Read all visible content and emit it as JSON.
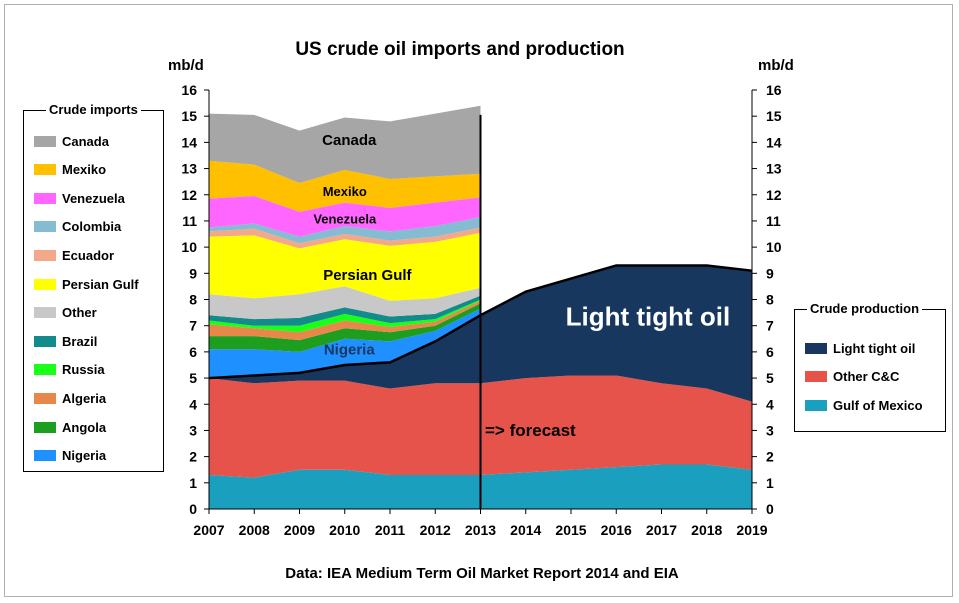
{
  "chart_data": {
    "type": "area",
    "title": "US crude oil imports and production",
    "ylabel_left": "mb/d",
    "ylabel_right": "mb/d",
    "source_note": "Data: IEA Medium Term Oil Market Report 2014 and EIA",
    "ylim": [
      0,
      16
    ],
    "yticks": [
      0,
      1,
      2,
      3,
      4,
      5,
      6,
      7,
      8,
      9,
      10,
      11,
      12,
      13,
      14,
      15,
      16
    ],
    "x": [
      2007,
      2008,
      2009,
      2010,
      2011,
      2012,
      2013,
      2014,
      2015,
      2016,
      2017,
      2018,
      2019
    ],
    "forecast_label": "=> forecast",
    "forecast_from": 2013,
    "production_series": [
      {
        "name": "Gulf of Mexico",
        "color": "#1B9FBE",
        "values": [
          1.3,
          1.2,
          1.5,
          1.5,
          1.3,
          1.3,
          1.3,
          1.4,
          1.5,
          1.6,
          1.7,
          1.7,
          1.5
        ]
      },
      {
        "name": "Other C&C",
        "color": "#E5534B",
        "values": [
          3.7,
          3.6,
          3.4,
          3.4,
          3.3,
          3.5,
          3.5,
          3.6,
          3.6,
          3.5,
          3.1,
          2.9,
          2.6
        ]
      },
      {
        "name": "Light tight oil",
        "color": "#17375E",
        "values": [
          0,
          0.3,
          0.3,
          0.6,
          1.0,
          1.6,
          2.6,
          3.3,
          3.7,
          4.2,
          4.5,
          4.7,
          5.0
        ]
      }
    ],
    "import_years": [
      2007,
      2008,
      2009,
      2010,
      2011,
      2012,
      2013
    ],
    "import_series": [
      {
        "name": "Nigeria",
        "color": "#1E90FF",
        "values": [
          1.1,
          1.0,
          0.8,
          1.0,
          0.8,
          0.4,
          0.25
        ]
      },
      {
        "name": "Angola",
        "color": "#1E9E1E",
        "values": [
          0.5,
          0.5,
          0.45,
          0.4,
          0.35,
          0.2,
          0.2
        ]
      },
      {
        "name": "Algeria",
        "color": "#E8874A",
        "values": [
          0.45,
          0.3,
          0.3,
          0.3,
          0.2,
          0.15,
          0.1
        ]
      },
      {
        "name": "Russia",
        "color": "#1AFF1A",
        "values": [
          0.15,
          0.1,
          0.25,
          0.25,
          0.15,
          0.1,
          0.05
        ]
      },
      {
        "name": "Brazil",
        "color": "#138B8B",
        "values": [
          0.2,
          0.25,
          0.3,
          0.25,
          0.25,
          0.2,
          0.15
        ]
      },
      {
        "name": "Other",
        "color": "#C8C8C8",
        "values": [
          0.8,
          0.8,
          0.9,
          0.8,
          0.6,
          0.6,
          0.3
        ]
      },
      {
        "name": "Persian Gulf",
        "color": "#FFFF00",
        "values": [
          2.2,
          2.4,
          1.75,
          1.8,
          2.1,
          2.15,
          2.1
        ]
      },
      {
        "name": "Ecuador",
        "color": "#F4A88A",
        "values": [
          0.2,
          0.25,
          0.2,
          0.2,
          0.2,
          0.2,
          0.2
        ]
      },
      {
        "name": "Colombia",
        "color": "#85BCD2",
        "values": [
          0.15,
          0.2,
          0.25,
          0.3,
          0.35,
          0.4,
          0.4
        ]
      },
      {
        "name": "Venezuela",
        "color": "#FF66FF",
        "values": [
          1.1,
          1.05,
          0.95,
          0.9,
          0.9,
          0.9,
          0.75
        ]
      },
      {
        "name": "Mexiko",
        "color": "#FFC000",
        "values": [
          1.45,
          1.2,
          1.1,
          1.25,
          1.1,
          1.0,
          0.9
        ]
      },
      {
        "name": "Canada",
        "color": "#A6A6A6",
        "values": [
          1.8,
          1.9,
          2.0,
          2.0,
          2.2,
          2.4,
          2.6
        ]
      }
    ],
    "area_labels": [
      {
        "text": "Canada",
        "x": 2010.1,
        "y": 13.9,
        "size": 15,
        "color": "#000000"
      },
      {
        "text": "Mexiko",
        "x": 2010.0,
        "y": 11.95,
        "size": 13,
        "color": "#000000"
      },
      {
        "text": "Venezuela",
        "x": 2010.0,
        "y": 10.9,
        "size": 13,
        "color": "#000000"
      },
      {
        "text": "Persian Gulf",
        "x": 2010.5,
        "y": 8.75,
        "size": 15,
        "color": "#000000"
      },
      {
        "text": "Nigeria",
        "x": 2010.1,
        "y": 5.9,
        "size": 15,
        "color": "#17375E"
      },
      {
        "text": "Light tight oil",
        "x": 2016.7,
        "y": 7.0,
        "size": 26,
        "color": "#FFFFFF"
      }
    ]
  },
  "legend_imports": {
    "title": "Crude imports",
    "items": [
      {
        "label": "Canada",
        "color": "#A6A6A6"
      },
      {
        "label": "Mexiko",
        "color": "#FFC000"
      },
      {
        "label": "Venezuela",
        "color": "#FF66FF"
      },
      {
        "label": "Colombia",
        "color": "#85BCD2"
      },
      {
        "label": "Ecuador",
        "color": "#F4A88A"
      },
      {
        "label": "Persian Gulf",
        "color": "#FFFF00"
      },
      {
        "label": "Other",
        "color": "#C8C8C8"
      },
      {
        "label": "Brazil",
        "color": "#138B8B"
      },
      {
        "label": "Russia",
        "color": "#1AFF1A"
      },
      {
        "label": "Algeria",
        "color": "#E8874A"
      },
      {
        "label": "Angola",
        "color": "#1E9E1E"
      },
      {
        "label": "Nigeria",
        "color": "#1E90FF"
      }
    ]
  },
  "legend_production": {
    "title": "Crude production",
    "items": [
      {
        "label": "Light tight oil",
        "color": "#17375E"
      },
      {
        "label": "Other C&C",
        "color": "#E5534B"
      },
      {
        "label": "Gulf of Mexico",
        "color": "#1B9FBE"
      }
    ]
  }
}
